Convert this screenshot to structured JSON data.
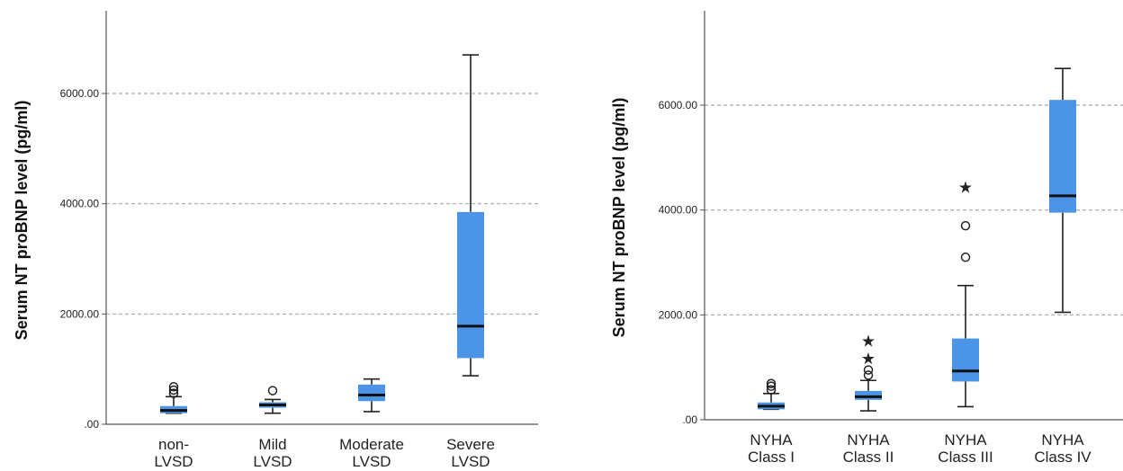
{
  "colors": {
    "box": "#4b94e6",
    "median": "#111111",
    "grid": "#a8a8a8",
    "axis": "#555555"
  },
  "chart_data": [
    {
      "type": "box",
      "ylabel": "Serum NT proBNP level (pg/ml)",
      "ylim": [
        0,
        7500
      ],
      "yticks": [
        {
          "value": 0,
          "label": ".00"
        },
        {
          "value": 2000,
          "label": "2000.00"
        },
        {
          "value": 4000,
          "label": "4000.00"
        },
        {
          "value": 6000,
          "label": "6000.00"
        }
      ],
      "grid": "horizontal dashed",
      "categories": [
        {
          "line1": "non-",
          "line2": "LVSD"
        },
        {
          "line1": "Mild",
          "line2": "LVSD"
        },
        {
          "line1": "Moderate",
          "line2": "LVSD"
        },
        {
          "line1": "Severe",
          "line2": "LVSD"
        }
      ],
      "boxes": [
        {
          "whisker_low": 200,
          "q1": 200,
          "median": 250,
          "q3": 330,
          "whisker_high": 500,
          "outliers": [
            560,
            620,
            680
          ],
          "extremes": []
        },
        {
          "whisker_low": 200,
          "q1": 300,
          "median": 350,
          "q3": 400,
          "whisker_high": 450,
          "outliers": [
            610
          ],
          "extremes": []
        },
        {
          "whisker_low": 230,
          "q1": 420,
          "median": 530,
          "q3": 720,
          "whisker_high": 820,
          "outliers": [],
          "extremes": []
        },
        {
          "whisker_low": 880,
          "q1": 1200,
          "median": 1780,
          "q3": 3850,
          "whisker_high": 6700,
          "outliers": [],
          "extremes": []
        }
      ]
    },
    {
      "type": "box",
      "ylabel": "Serum NT proBNP level (pg/ml)",
      "ylim": [
        0,
        7800
      ],
      "yticks": [
        {
          "value": 0,
          "label": ".00"
        },
        {
          "value": 2000,
          "label": "2000.00"
        },
        {
          "value": 4000,
          "label": "4000.00"
        },
        {
          "value": 6000,
          "label": "6000.00"
        }
      ],
      "grid": "horizontal dashed",
      "categories": [
        {
          "line1": "NYHA",
          "line2": "Class I"
        },
        {
          "line1": "NYHA",
          "line2": "Class II"
        },
        {
          "line1": "NYHA",
          "line2": "Class III"
        },
        {
          "line1": "NYHA",
          "line2": "Class IV"
        }
      ],
      "boxes": [
        {
          "whisker_low": 200,
          "q1": 200,
          "median": 260,
          "q3": 330,
          "whisker_high": 500,
          "outliers": [
            570,
            640,
            690
          ],
          "extremes": []
        },
        {
          "whisker_low": 170,
          "q1": 380,
          "median": 440,
          "q3": 550,
          "whisker_high": 750,
          "outliers": [
            850,
            950
          ],
          "extremes": [
            1180,
            1520
          ]
        },
        {
          "whisker_low": 250,
          "q1": 730,
          "median": 930,
          "q3": 1550,
          "whisker_high": 2560,
          "outliers": [
            3100,
            3700
          ],
          "extremes": [
            4450
          ]
        },
        {
          "whisker_low": 2050,
          "q1": 3950,
          "median": 4270,
          "q3": 6100,
          "whisker_high": 6700,
          "outliers": [],
          "extremes": []
        }
      ]
    }
  ]
}
